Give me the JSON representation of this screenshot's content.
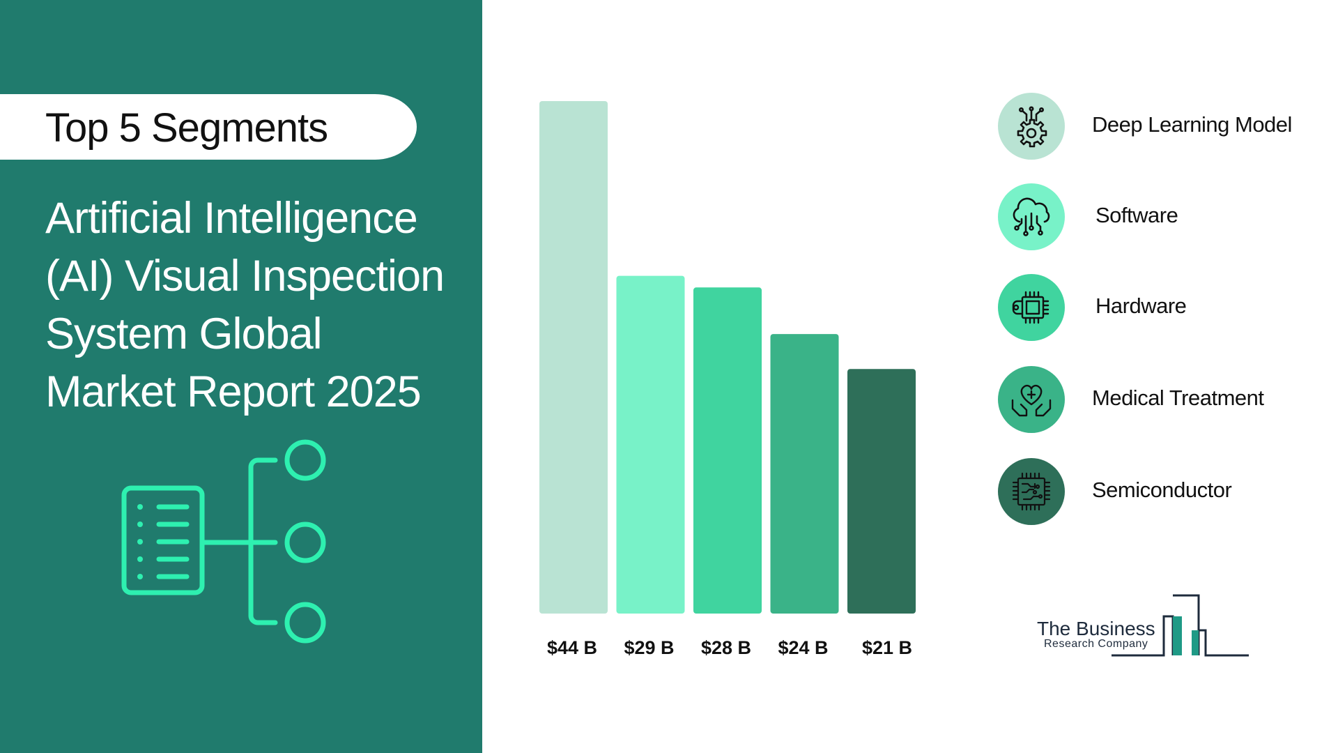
{
  "header": {
    "pill_title": "Top 5 Segments",
    "report_title_lines": [
      "Artificial Intelligence",
      "(AI) Visual Inspection",
      "System Global",
      "Market Report 2025"
    ]
  },
  "colors": {
    "panel": "#207b6d",
    "accent": "#2ef0b0",
    "logo_teal": "#1f9a86",
    "logo_navy": "#1e2b3c"
  },
  "chart_data": {
    "type": "bar",
    "categories": [
      "Deep Learning Model",
      "Software",
      "Hardware",
      "Medical Treatment",
      "Semiconductor"
    ],
    "values": [
      44,
      29,
      28,
      24,
      21
    ],
    "value_labels": [
      "$44 B",
      "$29 B",
      "$28 B",
      "$24 B",
      "$21 B"
    ],
    "colors": [
      "#b9e3d3",
      "#78f2c8",
      "#40d49f",
      "#3ab388",
      "#2e6f59"
    ],
    "ylim": [
      0,
      44
    ],
    "grid": false,
    "title": "",
    "xlabel": "",
    "ylabel": ""
  },
  "legend": [
    {
      "label": "Deep Learning Model",
      "icon": "gear-circuit-icon",
      "color": "#b9e3d3"
    },
    {
      "label": "Software",
      "icon": "cloud-circuit-icon",
      "color": "#78f2c8"
    },
    {
      "label": "Hardware",
      "icon": "chip-icon",
      "color": "#40d49f"
    },
    {
      "label": "Medical Treatment",
      "icon": "heart-hands-icon",
      "color": "#3ab388"
    },
    {
      "label": "Semiconductor",
      "icon": "circuit-board-icon",
      "color": "#2e6f59"
    }
  ],
  "logo": {
    "name": "The Business",
    "sub": "Research Company"
  }
}
